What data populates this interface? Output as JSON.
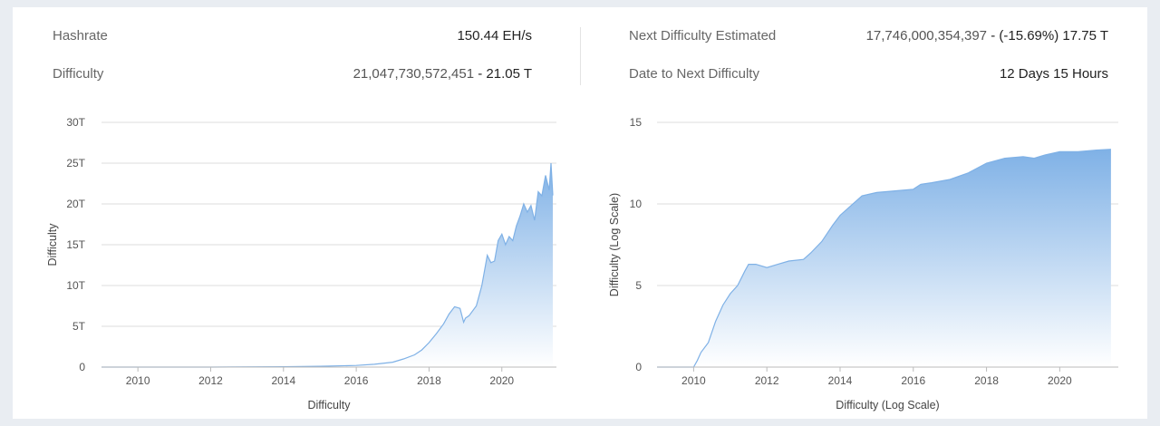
{
  "stats": {
    "hashrate": {
      "label": "Hashrate",
      "value": "150.44 EH/s"
    },
    "difficulty": {
      "label": "Difficulty",
      "value_main": "21,047,730,572,451",
      "value_sep": " - ",
      "value_short": "21.05 T"
    },
    "next_difficulty": {
      "label": "Next Difficulty Estimated",
      "value_main": "17,746,000,354,397",
      "value_sep": " - ",
      "value_change": "(-15.69%) 17.75 T"
    },
    "date_to_next": {
      "label": "Date to Next Difficulty",
      "value": "12 Days 15 Hours"
    }
  },
  "colors": {
    "area_top": "#7fb1e6",
    "area_bottom": "#ffffff",
    "line": "#7fb1e6",
    "grid": "#dcdcdc"
  },
  "chart_data": [
    {
      "type": "area",
      "title": "",
      "xlabel": "Difficulty",
      "ylabel": "Difficulty",
      "xlim": [
        2009,
        2021.5
      ],
      "ylim": [
        0,
        30
      ],
      "x_ticks": [
        2010,
        2012,
        2014,
        2016,
        2018,
        2020
      ],
      "y_ticks": [
        0,
        5,
        10,
        15,
        20,
        25,
        30
      ],
      "y_tick_labels": [
        "0",
        "5T",
        "10T",
        "15T",
        "20T",
        "25T",
        "30T"
      ],
      "grid": true,
      "series": [
        {
          "x": [
            2009.0,
            2012.0,
            2014.0,
            2015.0,
            2016.0,
            2016.5,
            2017.0,
            2017.3,
            2017.6,
            2017.8,
            2018.0,
            2018.2,
            2018.4,
            2018.55,
            2018.7,
            2018.85,
            2018.95,
            2019.0,
            2019.1,
            2019.3,
            2019.45,
            2019.6,
            2019.7,
            2019.8,
            2019.9,
            2020.0,
            2020.1,
            2020.2,
            2020.3,
            2020.4,
            2020.5,
            2020.6,
            2020.7,
            2020.8,
            2020.9,
            2021.0,
            2021.1,
            2021.2,
            2021.3,
            2021.35,
            2021.4
          ],
          "y": [
            0.0,
            0.0,
            0.05,
            0.1,
            0.2,
            0.35,
            0.6,
            1.0,
            1.5,
            2.1,
            3.0,
            4.1,
            5.3,
            6.5,
            7.4,
            7.2,
            5.5,
            6.0,
            6.3,
            7.5,
            10.0,
            13.7,
            12.8,
            13.0,
            15.5,
            16.3,
            15.0,
            16.0,
            15.5,
            17.3,
            18.5,
            20.0,
            19.0,
            19.8,
            18.0,
            21.5,
            21.0,
            23.5,
            21.7,
            25.0,
            21.05
          ]
        }
      ]
    },
    {
      "type": "area",
      "title": "",
      "xlabel": "Difficulty (Log Scale)",
      "ylabel": "Difficulty (Log Scale)",
      "xlim": [
        2009,
        2021.6
      ],
      "ylim": [
        0,
        15
      ],
      "x_ticks": [
        2010,
        2012,
        2014,
        2016,
        2018,
        2020
      ],
      "y_ticks": [
        0,
        5,
        10,
        15
      ],
      "grid": true,
      "series": [
        {
          "x": [
            2009.0,
            2010.0,
            2010.1,
            2010.2,
            2010.4,
            2010.6,
            2010.8,
            2011.0,
            2011.2,
            2011.4,
            2011.5,
            2011.7,
            2012.0,
            2012.3,
            2012.6,
            2013.0,
            2013.2,
            2013.5,
            2013.8,
            2014.0,
            2014.3,
            2014.6,
            2015.0,
            2015.5,
            2016.0,
            2016.2,
            2016.5,
            2017.0,
            2017.5,
            2018.0,
            2018.5,
            2019.0,
            2019.3,
            2019.6,
            2020.0,
            2020.5,
            2021.0,
            2021.4
          ],
          "y": [
            0.0,
            0.0,
            0.4,
            0.9,
            1.5,
            2.8,
            3.8,
            4.5,
            5.0,
            5.9,
            6.3,
            6.3,
            6.1,
            6.3,
            6.5,
            6.6,
            7.0,
            7.7,
            8.7,
            9.3,
            9.9,
            10.5,
            10.7,
            10.8,
            10.9,
            11.2,
            11.3,
            11.5,
            11.9,
            12.5,
            12.8,
            12.9,
            12.8,
            13.0,
            13.2,
            13.2,
            13.3,
            13.35
          ]
        }
      ]
    }
  ]
}
